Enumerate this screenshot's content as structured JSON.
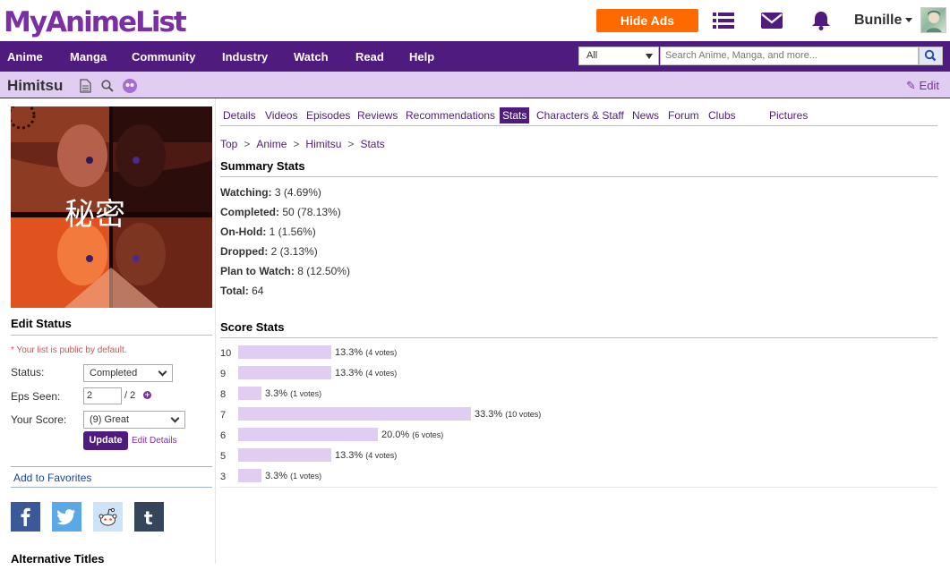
{
  "header": {
    "logo_text": "MyAnimeList",
    "hide_ads_label": "Hide Ads",
    "username": "Bunille",
    "colors": {
      "brand_purple": "#4f1b7e",
      "ads_orange": "#ff6a00",
      "title_bar": "#e1cdf2",
      "link": "#1c439b"
    }
  },
  "nav": {
    "items": [
      "Anime",
      "Manga",
      "Community",
      "Industry",
      "Watch",
      "Read",
      "Help"
    ],
    "search_scope": "All",
    "search_placeholder": "Search Anime, Manga, and more..."
  },
  "titlebar": {
    "title": "Himitsu",
    "edit_label": "Edit"
  },
  "tabs": [
    {
      "label": "Details"
    },
    {
      "label": "Videos"
    },
    {
      "label": "Episodes"
    },
    {
      "label": "Reviews"
    },
    {
      "label": "Recommendations"
    },
    {
      "label": "Stats",
      "active": true
    },
    {
      "label": "Characters & Staff"
    },
    {
      "label": "News"
    },
    {
      "label": "Forum"
    },
    {
      "label": "Clubs"
    },
    {
      "label": "Pictures"
    }
  ],
  "breadcrumb": [
    "Top",
    "Anime",
    "Himitsu",
    "Stats"
  ],
  "edit_status": {
    "heading": "Edit Status",
    "public_note": "* Your list is public by default.",
    "status_label": "Status:",
    "status_value": "Completed",
    "eps_label": "Eps Seen:",
    "eps_value": "2",
    "eps_total": "/ 2",
    "score_label": "Your Score:",
    "score_value": "(9) Great",
    "update_label": "Update",
    "edit_details_label": "Edit Details",
    "favorites_label": "Add to Favorites"
  },
  "alt_titles_heading": "Alternative Titles",
  "cover_text": "秘密",
  "share_icons": [
    "facebook-icon",
    "twitter-icon",
    "reddit-icon",
    "tumblr-icon"
  ],
  "summary": {
    "heading": "Summary Stats",
    "rows": [
      {
        "label": "Watching:",
        "value": "3 (4.69%)"
      },
      {
        "label": "Completed:",
        "value": "50 (78.13%)"
      },
      {
        "label": "On-Hold:",
        "value": "1 (1.56%)"
      },
      {
        "label": "Dropped:",
        "value": "2 (3.13%)"
      },
      {
        "label": "Plan to Watch:",
        "value": "8 (12.50%)"
      },
      {
        "label": "Total:",
        "value": "64"
      }
    ]
  },
  "score_stats": {
    "heading": "Score Stats",
    "rows": [
      {
        "score": "10",
        "pct": 13.3,
        "pct_label": "13.3%",
        "votes": "(4 votes)"
      },
      {
        "score": "9",
        "pct": 13.3,
        "pct_label": "13.3%",
        "votes": "(4 votes)"
      },
      {
        "score": "8",
        "pct": 3.3,
        "pct_label": "3.3%",
        "votes": "(1 votes)"
      },
      {
        "score": "7",
        "pct": 33.3,
        "pct_label": "33.3%",
        "votes": "(10 votes)"
      },
      {
        "score": "6",
        "pct": 20.0,
        "pct_label": "20.0%",
        "votes": "(6 votes)"
      },
      {
        "score": "5",
        "pct": 13.3,
        "pct_label": "13.3%",
        "votes": "(4 votes)"
      },
      {
        "score": "3",
        "pct": 3.3,
        "pct_label": "3.3%",
        "votes": "(1 votes)"
      }
    ]
  }
}
